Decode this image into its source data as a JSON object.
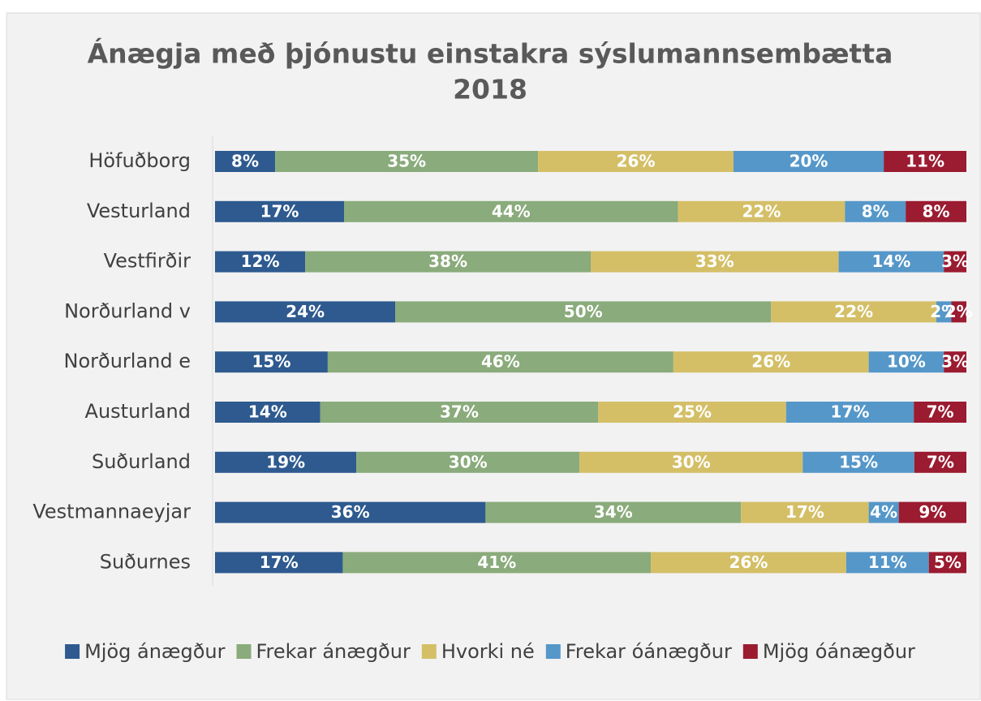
{
  "chart_data": {
    "type": "bar",
    "orientation": "horizontal",
    "stacked": "percent",
    "title": "Ánægja með þjónustu einstakra sýslumannsembætta",
    "subtitle": "2018",
    "categories": [
      "Höfuðborg",
      "Vesturland",
      "Vestfirðir",
      "Norðurland v",
      "Norðurland e",
      "Austurland",
      "Suðurland",
      "Vestmannaeyjar",
      "Suðurnes"
    ],
    "series": [
      {
        "name": "Mjög ánægður",
        "color": "#2e5a8f",
        "values": [
          8,
          17,
          12,
          24,
          15,
          14,
          19,
          36,
          17
        ]
      },
      {
        "name": "Frekar ánægður",
        "color": "#8aab7b",
        "values": [
          35,
          44,
          38,
          50,
          46,
          37,
          30,
          34,
          41
        ]
      },
      {
        "name": "Hvorki né",
        "color": "#d4bf67",
        "values": [
          26,
          22,
          33,
          22,
          26,
          25,
          30,
          17,
          26
        ]
      },
      {
        "name": "Frekar óánægður",
        "color": "#5597c9",
        "values": [
          20,
          8,
          14,
          2,
          10,
          17,
          15,
          4,
          11
        ]
      },
      {
        "name": "Mjög óánægður",
        "color": "#9b1b30",
        "values": [
          11,
          8,
          3,
          2,
          3,
          7,
          7,
          9,
          5
        ]
      }
    ],
    "value_labels": [
      [
        "8%",
        "17%",
        "12%",
        "24%",
        "15%",
        "14%",
        "19%",
        "36%",
        "17%"
      ],
      [
        "35%",
        "44%",
        "38%",
        "50%",
        "46%",
        "37%",
        "30%",
        "34%",
        "41%"
      ],
      [
        "26%",
        "22%",
        "33%",
        "22%",
        "26%",
        "25%",
        "30%",
        "17%",
        "26%"
      ],
      [
        "20%",
        "8%",
        "14%",
        "2%",
        "10%",
        "17%",
        "15%",
        "4%",
        "11%"
      ],
      [
        "11%",
        "8%",
        "3%",
        "2%",
        "3%",
        "7%",
        "7%",
        "9%",
        "5%"
      ]
    ],
    "legend": "bottom"
  }
}
